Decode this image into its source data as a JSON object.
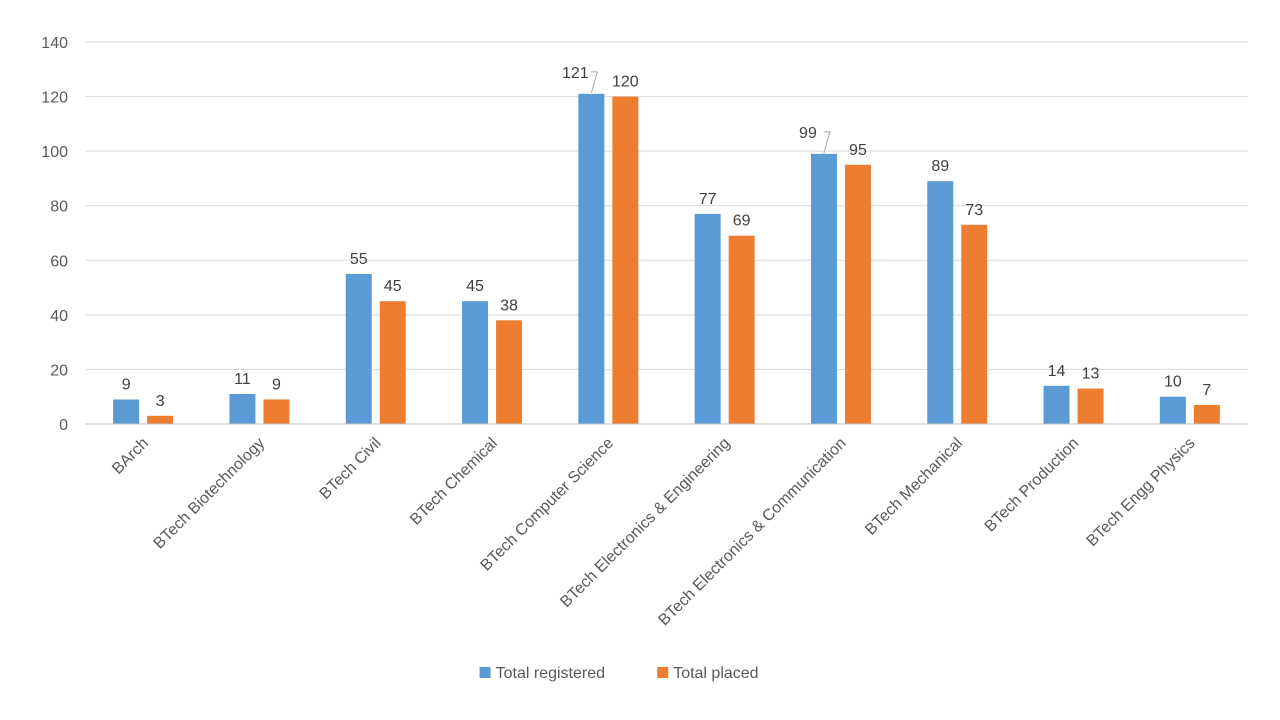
{
  "chart_data": {
    "type": "bar",
    "title": "",
    "xlabel": "",
    "ylabel": "",
    "ylim": [
      0,
      140
    ],
    "yticks": [
      0,
      20,
      40,
      60,
      80,
      100,
      120,
      140
    ],
    "grid": true,
    "legend_position": "bottom",
    "categories": [
      "BArch",
      "BTech Biotechnology",
      "BTech Civil",
      "BTech Chemical",
      "BTech Computer Science",
      "BTech Electronics & Engineering",
      "BTech Electronics & Communication",
      "BTech Mechanical",
      "BTech Production",
      "BTech Engg Physics"
    ],
    "series": [
      {
        "name": "Total registered",
        "color": "#5B9BD5",
        "values": [
          9,
          11,
          55,
          45,
          121,
          77,
          99,
          89,
          14,
          10
        ]
      },
      {
        "name": "Total placed",
        "color": "#ED7D31",
        "values": [
          3,
          9,
          45,
          38,
          120,
          69,
          95,
          73,
          13,
          7
        ]
      }
    ],
    "colors": {
      "grid": "#D9D9D9",
      "axis": "#BFBFBF",
      "leader_line": "#A6A6A6"
    }
  }
}
